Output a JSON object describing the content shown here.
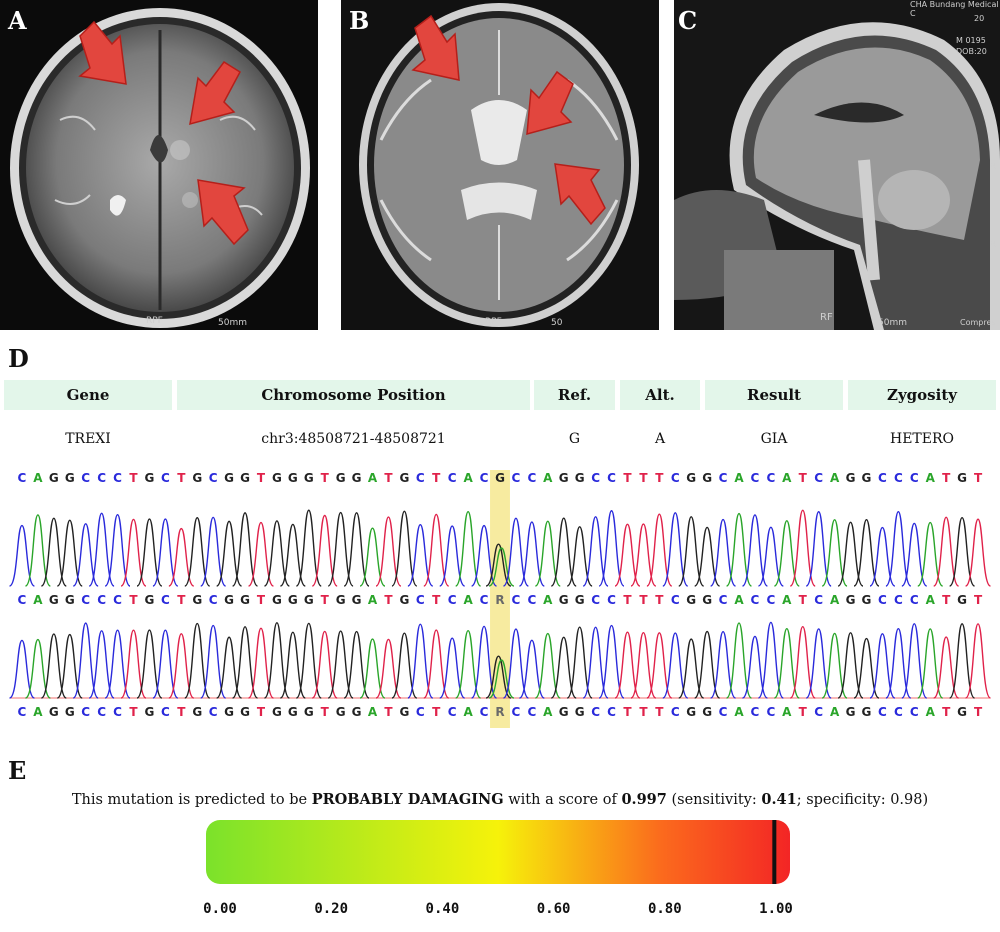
{
  "panels": {
    "a": {
      "letter": "A",
      "label_bottom": "RPF",
      "scale": "50mm"
    },
    "b": {
      "letter": "B",
      "label_bottom": "RPF",
      "scale": "50"
    },
    "c": {
      "letter": "C",
      "label_bottom": "RF",
      "scale": "50mm",
      "header_lines": [
        "CHA Bundang Medical C",
        "20",
        "M 0195",
        "DOB:20"
      ],
      "edge_r": "R",
      "edge_r2": "R",
      "corner": "Compres"
    }
  },
  "section_d": {
    "letter": "D",
    "table": {
      "headers": [
        "Gene",
        "Chromosome Position",
        "Ref.",
        "Alt.",
        "Result",
        "Zygosity"
      ],
      "row": [
        "TREXI",
        "chr3:48508721-48508721",
        "G",
        "A",
        "GIA",
        "HETERO"
      ]
    },
    "reference_sequence": "CAGGCCCTGCTGCGGTGGGTGGATGCTCACGCCAGGCCTTTCGGCACCATCAGGCCCATGT",
    "called_sequence_1": "CAGGCCCTGCTGCGGTGGGTGGATGCTCACRCCAGGCCTTTCGGCACCATCAGGCCCATGT",
    "called_sequence_2": "CAGGCCCTGCTGCGGTGGGTGGATGCTCACRCCAGGCCTTTCGGCACCATCAGGCCCATGT",
    "variant_index": 30,
    "base_colors": {
      "A": "#2aa52a",
      "C": "#2a2adb",
      "G": "#222222",
      "T": "#e0224a",
      "R": "#6a6a6a"
    },
    "highlight_color": "#f7eba0"
  },
  "section_e": {
    "letter": "E",
    "sentence_start": "This mutation is predicted to be ",
    "prediction": "PROBABLY DAMAGING",
    "sentence_mid": " with a score of ",
    "score_text": "0.997",
    "sens_open": " (sensitivity: ",
    "sensitivity_text": "0.41",
    "spec_part": "; specificity: 0.98)",
    "score": 0.997,
    "scale_ticks": [
      "0.00",
      "0.20",
      "0.40",
      "0.60",
      "0.80",
      "1.00"
    ],
    "gradient_colors": [
      "#7be22b",
      "#f6f20a",
      "#fb6a1d",
      "#f32525"
    ]
  }
}
